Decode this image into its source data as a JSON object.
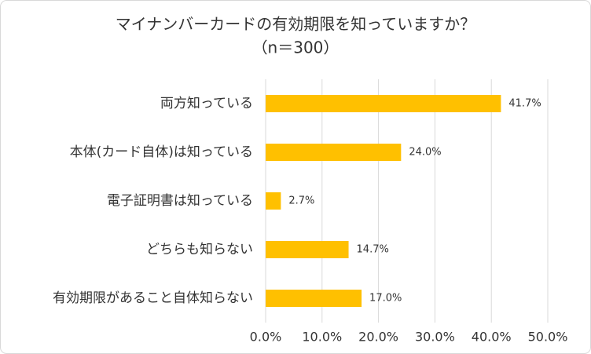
{
  "chart_data": {
    "type": "bar",
    "orientation": "horizontal",
    "title": "マイナンバーカードの有効期限を知っていますか？",
    "subtitle": "（n＝300）",
    "categories": [
      "両方知っている",
      "本体(カード自体)は知っている",
      "電子証明書は知っている",
      "どちらも知らない",
      "有効期限があること自体知らない"
    ],
    "values": [
      41.7,
      24.0,
      2.7,
      14.7,
      17.0
    ],
    "value_labels": [
      "41.7%",
      "24.0%",
      "2.7%",
      "14.7%",
      "17.0%"
    ],
    "color": "#ffc000",
    "xlim": [
      0,
      50
    ],
    "xticks": [
      {
        "value": 0,
        "label": "0.0%"
      },
      {
        "value": 10,
        "label": "10.0%"
      },
      {
        "value": 20,
        "label": "20.0%"
      },
      {
        "value": 30,
        "label": "30.0%"
      },
      {
        "value": 40,
        "label": "40.0%"
      },
      {
        "value": 50,
        "label": "50.0%"
      }
    ],
    "grid": true
  }
}
